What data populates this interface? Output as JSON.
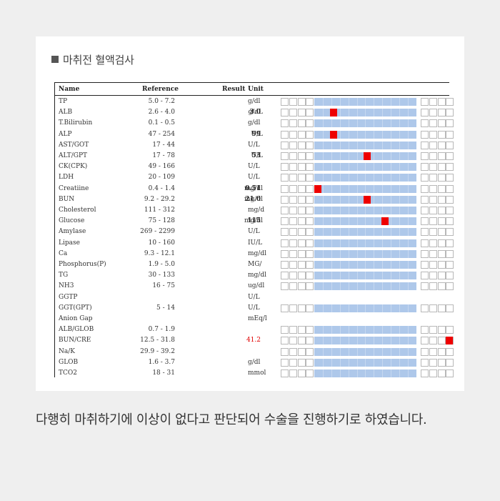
{
  "heading": "마취전 혈액검사",
  "caption": "다행히 마취하기에 이상이 없다고 판단되어 수술을 진행하기로 하였습니다.",
  "colors": {
    "normal_range": "#aec8ea",
    "marker": "#ee0000",
    "out_of_range_text": "#e00000"
  },
  "table": {
    "headers": {
      "name": "Name",
      "reference": "Reference",
      "result": "Result",
      "unit": "Unit"
    },
    "rows": [
      {
        "name": "TP",
        "reference": "5.0 - 7.2",
        "result": "",
        "unit": "g/dl",
        "bar": true
      },
      {
        "name": "ALB",
        "reference": "2.6 - 4.0",
        "result": "3.0",
        "unit": "g/dL",
        "bar": true,
        "marker": 0.19
      },
      {
        "name": "T.Bilirubin",
        "reference": "0.1 - 0.5",
        "result": "",
        "unit": "g/dl",
        "bar": true
      },
      {
        "name": "ALP",
        "reference": "47 - 254",
        "result": "99",
        "unit": "U/L",
        "bar": true,
        "marker": 0.19
      },
      {
        "name": "AST/GOT",
        "reference": "17 - 44",
        "result": "",
        "unit": "U/L",
        "bar": true
      },
      {
        "name": "ALT/GPT",
        "reference": "17 - 78",
        "result": "53",
        "unit": "U/L",
        "bar": true,
        "marker": 0.52
      },
      {
        "name": "CK(CPK)",
        "reference": "49 - 166",
        "result": "",
        "unit": "U/L",
        "bar": true
      },
      {
        "name": "LDH",
        "reference": "20 - 109",
        "result": "",
        "unit": "U/L",
        "bar": true
      },
      {
        "name": "Creatiine",
        "reference": "0.4 - 1.4",
        "result": "0.51",
        "unit": "mg/dl",
        "bar": true,
        "marker": 0.03
      },
      {
        "name": "BUN",
        "reference": "9.2 - 29.2",
        "result": "21.0",
        "unit": "mg/dl",
        "bar": true,
        "marker": 0.52
      },
      {
        "name": "Cholesterol",
        "reference": "111 - 312",
        "result": "",
        "unit": "mg/d",
        "bar": true
      },
      {
        "name": "Glucose",
        "reference": "75 - 128",
        "result": "115",
        "unit": "mg/dl",
        "bar": true,
        "marker": 0.69
      },
      {
        "name": "Amylase",
        "reference": "269 - 2299",
        "result": "",
        "unit": "U/L",
        "bar": true
      },
      {
        "name": "Lipase",
        "reference": "10 - 160",
        "result": "",
        "unit": "IU/L",
        "bar": true
      },
      {
        "name": "Ca",
        "reference": "9.3 - 12.1",
        "result": "",
        "unit": "mg/dl",
        "bar": true
      },
      {
        "name": "Phosphorus(P)",
        "reference": "1.9 - 5.0",
        "result": "",
        "unit": "MG/",
        "bar": true
      },
      {
        "name": "TG",
        "reference": "30 - 133",
        "result": "",
        "unit": "mg/dl",
        "bar": true
      },
      {
        "name": "NH3",
        "reference": "16 - 75",
        "result": "",
        "unit": "ug/dl",
        "bar": true
      },
      {
        "name": "GGTP",
        "reference": "",
        "result": "",
        "unit": "U/L",
        "bar": false
      },
      {
        "name": "GGT(GPT)",
        "reference": "5 - 14",
        "result": "",
        "unit": "U/L",
        "bar": true
      },
      {
        "name": "Anion Gap",
        "reference": "",
        "result": "",
        "unit": "mEq/l",
        "bar": false
      },
      {
        "name": "ALB/GLOB",
        "reference": "0.7 - 1.9",
        "result": "",
        "unit": "",
        "bar": true
      },
      {
        "name": "BUN/CRE",
        "reference": "12.5 - 31.8",
        "result": "41.2",
        "unit": "",
        "bar": true,
        "marker": 1.2,
        "result_out_of_range": true
      },
      {
        "name": "Na/K",
        "reference": "29.9 - 39.2",
        "result": "",
        "unit": "",
        "bar": true
      },
      {
        "name": "GLOB",
        "reference": "1.6 - 3.7",
        "result": "",
        "unit": "g/dl",
        "bar": true
      },
      {
        "name": "TCO2",
        "reference": "18 - 31",
        "result": "",
        "unit": "mmol",
        "bar": true
      }
    ]
  }
}
